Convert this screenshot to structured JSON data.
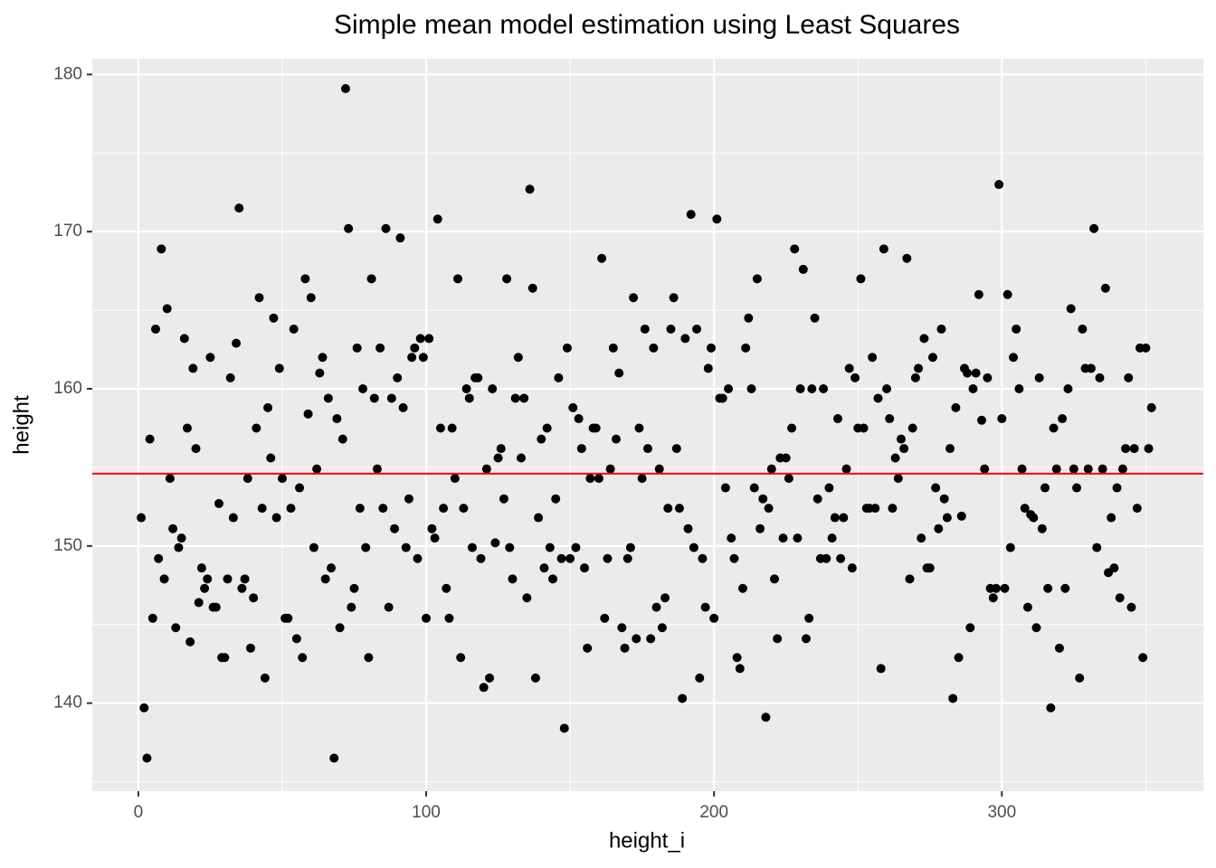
{
  "chart_data": {
    "type": "scatter",
    "title": "Simple mean model estimation using Least Squares",
    "x_label": "height_i",
    "y_label": "height",
    "xlim": [
      -16,
      370
    ],
    "ylim": [
      134.4,
      181.0
    ],
    "xticks": [
      0,
      100,
      200,
      300
    ],
    "yticks": [
      140,
      150,
      160,
      170,
      180
    ],
    "xminor": [
      50,
      150,
      250,
      350
    ],
    "yminor": [
      135,
      145,
      155,
      165,
      175
    ],
    "grid": true,
    "color": "#000000",
    "hline": 154.6,
    "hline_color": "#ff0000",
    "series": [
      {
        "x": [
          1,
          2,
          3,
          4,
          5,
          6,
          7,
          8,
          9,
          10,
          11,
          12,
          13,
          14,
          15,
          16,
          17,
          18,
          19,
          20,
          21,
          22,
          23,
          24,
          25,
          26,
          27,
          28,
          29,
          30,
          31,
          32,
          33,
          34,
          35,
          36,
          37,
          38,
          39,
          40,
          41,
          42,
          43,
          44,
          45,
          46,
          47,
          48,
          49,
          50,
          51,
          52,
          53,
          54,
          55,
          56,
          57,
          58,
          59,
          60,
          61,
          62,
          63,
          64,
          65,
          66,
          67,
          68,
          69,
          70,
          71,
          72,
          73,
          74,
          75,
          76,
          77,
          78,
          79,
          80,
          81,
          82,
          83,
          84,
          85,
          86,
          87,
          88,
          89,
          90,
          91,
          92,
          93,
          94,
          95,
          96,
          97,
          98,
          99,
          100,
          101,
          102,
          103,
          104,
          105,
          106,
          107,
          108,
          109,
          110,
          111,
          112,
          113,
          114,
          115,
          116,
          117,
          118,
          119,
          120,
          121,
          122,
          123,
          124,
          125,
          126,
          127,
          128,
          129,
          130,
          131,
          132,
          133,
          134,
          135,
          136,
          137,
          138,
          139,
          140,
          141,
          142,
          143,
          144,
          145,
          146,
          147,
          148,
          149,
          150,
          151,
          152,
          153,
          154,
          155,
          156,
          157,
          158,
          159,
          160,
          161,
          162,
          163,
          164,
          165,
          166,
          167,
          168,
          169,
          170,
          171,
          172,
          173,
          174,
          175,
          176,
          177,
          178,
          179,
          180,
          181,
          182,
          183,
          184,
          185,
          186,
          187,
          188,
          189,
          190,
          191,
          192,
          193,
          194,
          195,
          196,
          197,
          198,
          199,
          200,
          201,
          202,
          203,
          204,
          205,
          206,
          207,
          208,
          209,
          210,
          211,
          212,
          213,
          214,
          215,
          216,
          217,
          218,
          219,
          220,
          221,
          222,
          223,
          224,
          225,
          226,
          227,
          228,
          229,
          230,
          231,
          232,
          233,
          234,
          235,
          236,
          237,
          238,
          239,
          240,
          241,
          242,
          243,
          244,
          245,
          246,
          247,
          248,
          249,
          250,
          251,
          252,
          253,
          254,
          255,
          256,
          257,
          258,
          259,
          260,
          261,
          262,
          263,
          264,
          265,
          266,
          267,
          268,
          269,
          270,
          271,
          272,
          273,
          274,
          275,
          276,
          277,
          278,
          279,
          280,
          281,
          282,
          283,
          284,
          285,
          286,
          287,
          288,
          289,
          290,
          291,
          292,
          293,
          294,
          295,
          296,
          297,
          298,
          299,
          300,
          301,
          302,
          303,
          304,
          305,
          306,
          307,
          308,
          309,
          310,
          311,
          312,
          313,
          314,
          315,
          316,
          317,
          318,
          319,
          320,
          321,
          322,
          323,
          324,
          325,
          326,
          327,
          328,
          329,
          330,
          331,
          332,
          333,
          334,
          335,
          336,
          337,
          338,
          339,
          340,
          341,
          342,
          343,
          344,
          345,
          346,
          347,
          348,
          349,
          350,
          351,
          352
        ],
        "values": [
          151.8,
          139.7,
          136.5,
          156.8,
          145.4,
          163.8,
          149.2,
          168.9,
          147.9,
          165.1,
          154.3,
          151.1,
          144.8,
          149.9,
          150.5,
          163.2,
          157.5,
          143.9,
          161.3,
          156.2,
          146.4,
          148.6,
          147.3,
          147.9,
          162.0,
          146.1,
          146.1,
          152.7,
          142.9,
          142.9,
          147.9,
          160.7,
          151.8,
          162.9,
          171.5,
          147.3,
          147.9,
          154.3,
          143.5,
          146.7,
          157.5,
          165.8,
          152.4,
          141.6,
          158.8,
          155.6,
          164.5,
          151.8,
          161.3,
          154.3,
          145.4,
          145.4,
          152.4,
          163.8,
          144.1,
          153.7,
          142.9,
          167.0,
          158.4,
          165.8,
          149.9,
          154.9,
          161.0,
          162.0,
          147.9,
          159.4,
          148.6,
          136.5,
          158.1,
          144.8,
          156.8,
          179.1,
          170.2,
          146.1,
          147.3,
          162.6,
          152.4,
          160.0,
          149.9,
          142.9,
          167.0,
          159.4,
          154.9,
          162.6,
          152.4,
          170.2,
          146.1,
          159.4,
          151.1,
          160.7,
          169.6,
          158.8,
          149.9,
          153.0,
          162.0,
          162.6,
          149.2,
          163.2,
          162.0,
          145.4,
          163.2,
          151.1,
          150.5,
          170.8,
          157.5,
          152.4,
          147.3,
          145.4,
          157.5,
          154.3,
          167.0,
          142.9,
          152.4,
          160.0,
          159.4,
          149.9,
          160.7,
          160.7,
          149.2,
          141.0,
          154.9,
          141.6,
          160.0,
          150.2,
          155.6,
          156.2,
          153.0,
          167.0,
          149.9,
          147.9,
          159.4,
          162.0,
          155.6,
          159.4,
          146.7,
          172.7,
          166.4,
          141.6,
          151.8,
          156.8,
          148.6,
          157.5,
          149.9,
          147.9,
          153.0,
          160.7,
          149.2,
          138.4,
          162.6,
          149.2,
          158.8,
          149.9,
          158.1,
          156.2,
          148.6,
          143.5,
          154.3,
          157.5,
          157.5,
          154.3,
          168.3,
          145.4,
          149.2,
          154.9,
          162.6,
          156.8,
          161.0,
          144.8,
          143.5,
          149.2,
          149.9,
          165.8,
          144.1,
          157.5,
          154.3,
          163.8,
          156.2,
          144.1,
          162.6,
          146.1,
          154.9,
          144.8,
          146.7,
          152.4,
          163.8,
          165.8,
          156.2,
          152.4,
          140.3,
          163.2,
          151.1,
          171.1,
          149.9,
          163.8,
          141.6,
          149.2,
          146.1,
          161.3,
          162.6,
          145.4,
          170.8,
          159.4,
          159.4,
          153.7,
          160.0,
          150.5,
          149.2,
          142.9,
          142.2,
          147.3,
          162.6,
          164.5,
          160.0,
          153.7,
          167.0,
          151.1,
          153.0,
          139.1,
          152.4,
          154.9,
          147.9,
          144.1,
          155.6,
          150.5,
          155.6,
          154.3,
          157.5,
          168.9,
          150.5,
          160.0,
          167.6,
          144.1,
          145.4,
          160.0,
          164.5,
          153.0,
          149.2,
          160.0,
          149.2,
          153.7,
          150.5,
          151.8,
          158.1,
          149.2,
          151.8,
          154.9,
          161.3,
          148.6,
          160.7,
          157.5,
          167.0,
          157.5,
          152.4,
          152.4,
          162.0,
          152.4,
          159.4,
          142.2,
          168.9,
          160.0,
          158.1,
          152.4,
          155.6,
          154.3,
          156.8,
          156.2,
          168.3,
          147.9,
          157.5,
          160.7,
          161.3,
          150.5,
          163.2,
          148.6,
          148.6,
          162.0,
          153.7,
          151.1,
          163.8,
          153.0,
          151.8,
          156.2,
          140.3,
          158.8,
          142.9,
          151.9,
          161.3,
          161.0,
          144.8,
          160.0,
          161.0,
          166.0,
          158.0,
          154.9,
          160.7,
          147.3,
          146.7,
          147.3,
          173.0,
          158.1,
          147.3,
          166.0,
          149.9,
          162.0,
          163.8,
          160.0,
          154.9,
          152.4,
          146.1,
          152.0,
          151.8,
          144.8,
          160.7,
          151.1,
          153.7,
          147.3,
          139.7,
          157.5,
          154.9,
          143.5,
          158.1,
          147.3,
          160.0,
          165.1,
          154.9,
          153.7,
          141.6,
          163.8,
          161.3,
          154.9,
          161.3,
          170.2,
          149.9,
          160.7,
          154.9,
          166.4,
          148.3,
          151.8,
          148.6,
          153.7,
          146.7,
          154.9,
          156.2,
          160.7,
          146.1,
          156.2,
          152.4,
          162.6,
          142.9,
          162.6,
          156.2,
          158.8
        ]
      }
    ]
  }
}
